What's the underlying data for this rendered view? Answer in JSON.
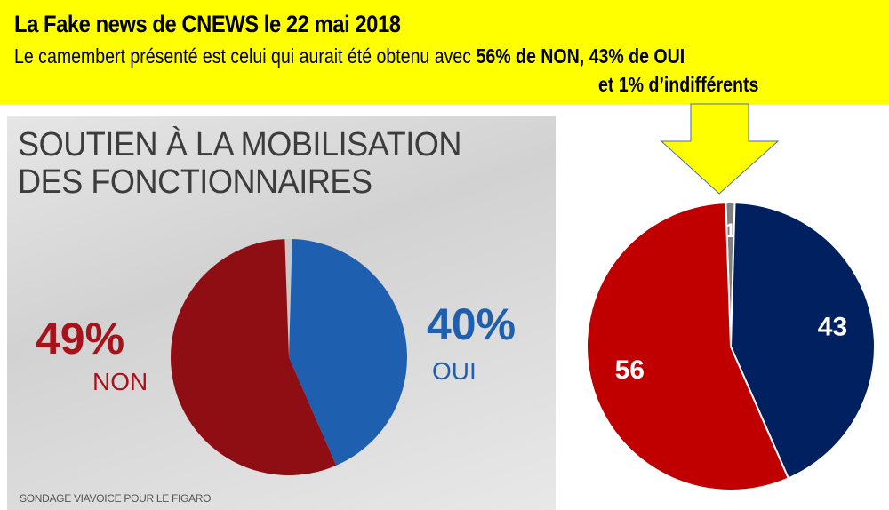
{
  "banner": {
    "title": "La Fake news de CNEWS le 22 mai 2018",
    "subtitle_plain": "Le camembert présenté est celui qui aurait été obtenu avec ",
    "subtitle_bold": "56% de NON, 43% de OUI",
    "subtitle_line2": "et 1% d’indifférents",
    "color": "#ffff00"
  },
  "chart_data": [
    {
      "type": "pie",
      "title": "SOUTIEN À LA MOBILISATION DES FONCTIONNAIRES",
      "title_lines": [
        "SOUTIEN À LA MOBILISATION",
        "DES FONCTIONNAIRES"
      ],
      "source": "SONDAGE VIAVOICE POUR LE FIGARO",
      "slices": [
        {
          "label": "OUI",
          "value": 40,
          "value_label": "40%",
          "color": "#1f5fb0"
        },
        {
          "label": "NON",
          "value": 49,
          "value_label": "49%",
          "color": "#9e1018"
        },
        {
          "label": "",
          "value": 1,
          "color": "#bbbbbb"
        }
      ]
    },
    {
      "type": "pie",
      "slices": [
        {
          "label": "",
          "value": 1,
          "value_label": "1",
          "color": "#808080"
        },
        {
          "label": "",
          "value": 43,
          "value_label": "43",
          "color": "#002060"
        },
        {
          "label": "",
          "value": 56,
          "value_label": "56",
          "color": "#c00000"
        }
      ]
    }
  ]
}
